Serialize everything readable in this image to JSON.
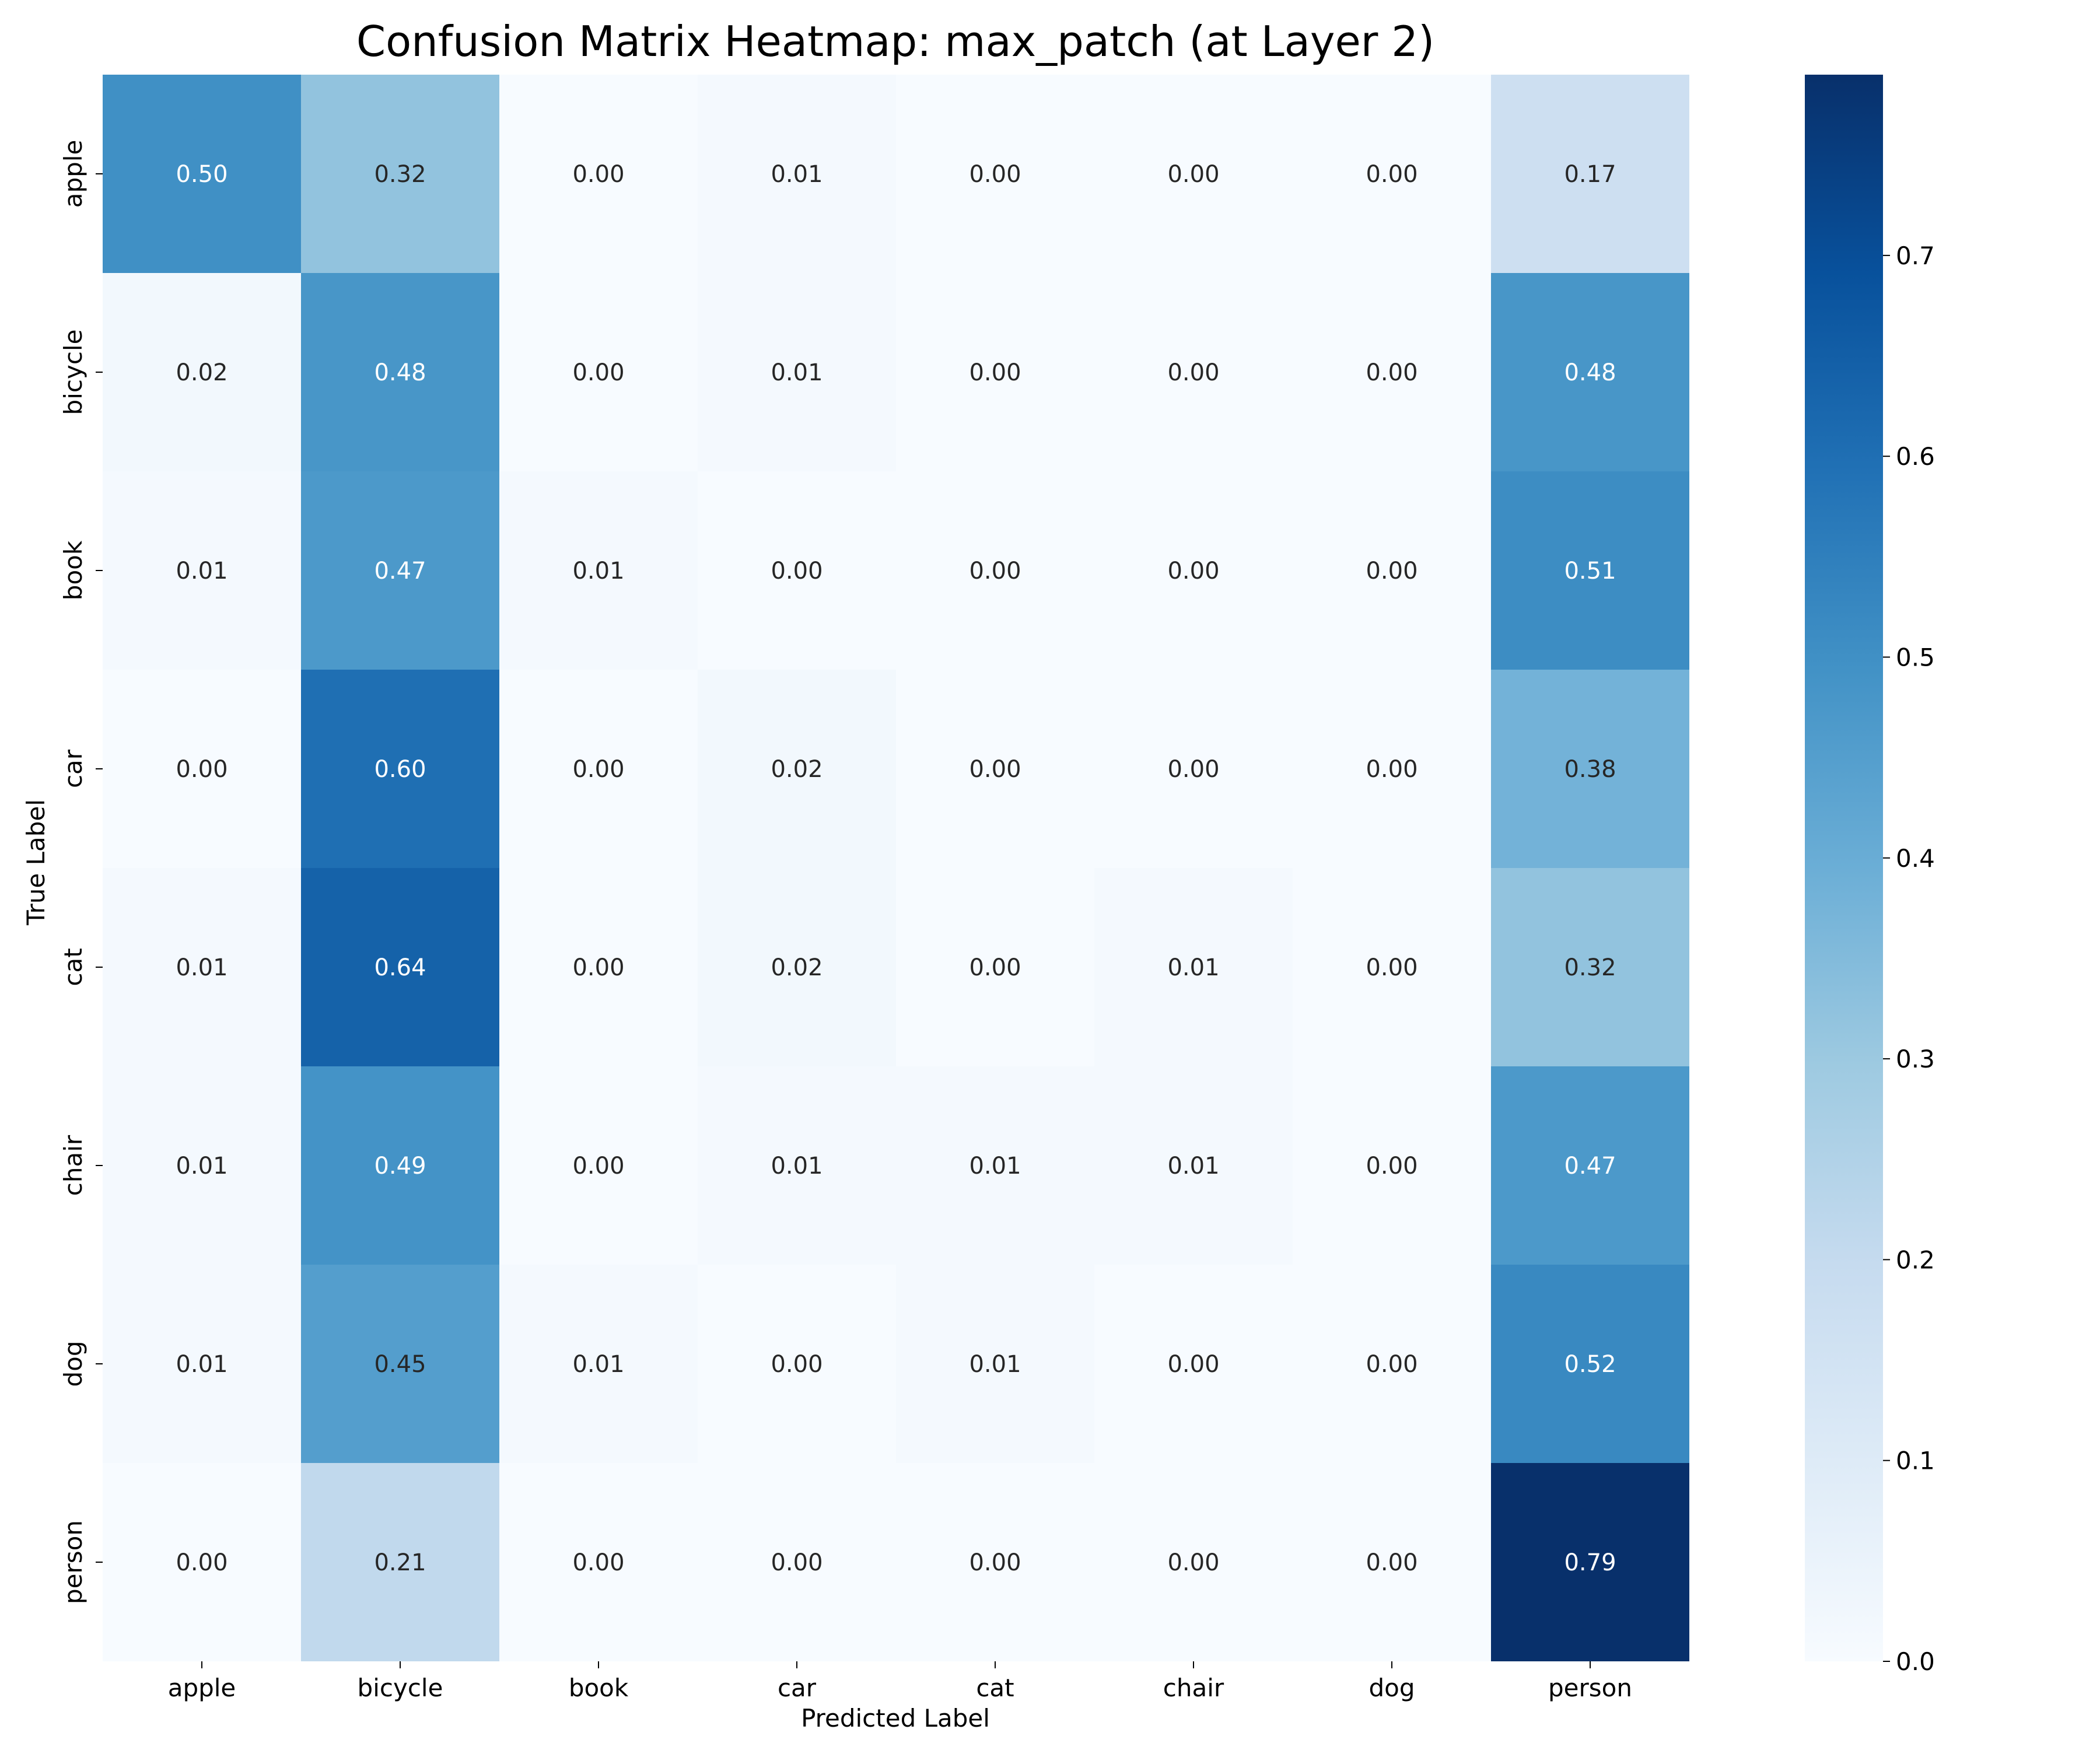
{
  "chart_data": {
    "type": "heatmap",
    "title": "Confusion Matrix Heatmap: max_patch (at Layer 2)",
    "xlabel": "Predicted Label",
    "ylabel": "True Label",
    "x_categories": [
      "apple",
      "bicycle",
      "book",
      "car",
      "cat",
      "chair",
      "dog",
      "person"
    ],
    "y_categories": [
      "apple",
      "bicycle",
      "book",
      "car",
      "cat",
      "chair",
      "dog",
      "person"
    ],
    "values": [
      [
        0.5,
        0.32,
        0.0,
        0.01,
        0.0,
        0.0,
        0.0,
        0.17
      ],
      [
        0.02,
        0.48,
        0.0,
        0.01,
        0.0,
        0.0,
        0.0,
        0.48
      ],
      [
        0.01,
        0.47,
        0.01,
        0.0,
        0.0,
        0.0,
        0.0,
        0.51
      ],
      [
        0.0,
        0.6,
        0.0,
        0.02,
        0.0,
        0.0,
        0.0,
        0.38
      ],
      [
        0.01,
        0.64,
        0.0,
        0.02,
        0.0,
        0.01,
        0.0,
        0.32
      ],
      [
        0.01,
        0.49,
        0.0,
        0.01,
        0.01,
        0.01,
        0.0,
        0.47
      ],
      [
        0.01,
        0.45,
        0.01,
        0.0,
        0.01,
        0.0,
        0.0,
        0.52
      ],
      [
        0.0,
        0.21,
        0.0,
        0.0,
        0.0,
        0.0,
        0.0,
        0.79
      ]
    ],
    "value_format": "2 decimals",
    "colormap": "Blues",
    "color_range": [
      0.0,
      0.79
    ],
    "colorbar_ticks": [
      "0.0",
      "0.1",
      "0.2",
      "0.3",
      "0.4",
      "0.5",
      "0.6",
      "0.7"
    ],
    "grid": false,
    "colorbar_position": "right"
  }
}
